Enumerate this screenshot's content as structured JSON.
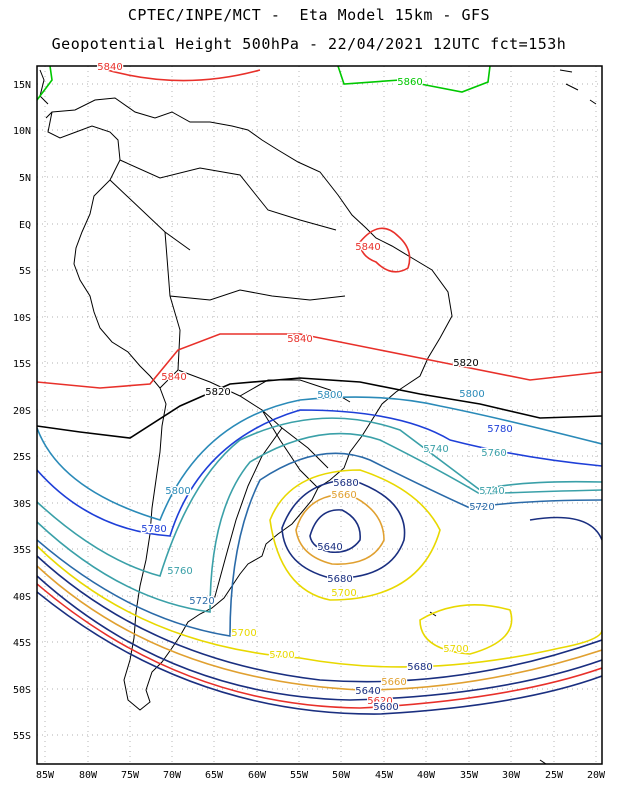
{
  "title": {
    "line1": "CPTEC/INPE/MCT -  Eta Model 15km - GFS",
    "line2": "Geopotential Height 500hPa - 22/04/2021 12UTC fct=153h"
  },
  "lat_labels": [
    "15N",
    "10N",
    "5N",
    "EQ",
    "5S",
    "10S",
    "15S",
    "20S",
    "25S",
    "30S",
    "35S",
    "40S",
    "45S",
    "50S",
    "55S"
  ],
  "lon_labels": [
    "85W",
    "80W",
    "75W",
    "70W",
    "65W",
    "60W",
    "55W",
    "50W",
    "45W",
    "40W",
    "35W",
    "30W",
    "25W",
    "20W"
  ],
  "contour_labels": [
    {
      "text": "5860",
      "color": "#00c800"
    },
    {
      "text": "5840",
      "color": "#e8302a"
    },
    {
      "text": "5840",
      "color": "#e8302a"
    },
    {
      "text": "5840",
      "color": "#e8302a"
    },
    {
      "text": "5840",
      "color": "#e8302a"
    },
    {
      "text": "5820",
      "color": "#000000"
    },
    {
      "text": "5820",
      "color": "#000000"
    },
    {
      "text": "5800",
      "color": "#2a8ab8"
    },
    {
      "text": "5800",
      "color": "#2a8ab8"
    },
    {
      "text": "5800",
      "color": "#2a8ab8"
    },
    {
      "text": "5780",
      "color": "#1e3fd8"
    },
    {
      "text": "5780",
      "color": "#1e3fd8"
    },
    {
      "text": "5760",
      "color": "#3aa0a8"
    },
    {
      "text": "5760",
      "color": "#3aa0a8"
    },
    {
      "text": "5740",
      "color": "#3aa0a8"
    },
    {
      "text": "5740",
      "color": "#3aa0a8"
    },
    {
      "text": "5720",
      "color": "#2a6aa8"
    },
    {
      "text": "5720",
      "color": "#2a6aa8"
    },
    {
      "text": "5700",
      "color": "#e8d800"
    },
    {
      "text": "5700",
      "color": "#e8d800"
    },
    {
      "text": "5700",
      "color": "#e8d800"
    },
    {
      "text": "5700",
      "color": "#e8d800"
    },
    {
      "text": "5680",
      "color": "#1a2f80"
    },
    {
      "text": "5680",
      "color": "#1a2f80"
    },
    {
      "text": "5680",
      "color": "#1a2f80"
    },
    {
      "text": "5660",
      "color": "#e0a030"
    },
    {
      "text": "5660",
      "color": "#e0a030"
    },
    {
      "text": "5640",
      "color": "#1a2f80"
    },
    {
      "text": "5640",
      "color": "#1a2f80"
    },
    {
      "text": "5620",
      "color": "#e8302a"
    },
    {
      "text": "5600",
      "color": "#1a2f80"
    }
  ],
  "colors": {
    "frame": "#000000",
    "grid": "#999999",
    "coast": "#000000",
    "c5860": "#00c800",
    "c5840": "#e8302a",
    "c5820": "#000000",
    "c5800": "#2a8ab8",
    "c5780": "#1e3fd8",
    "c5760": "#3aa0a8",
    "c5720": "#2a6aa8",
    "c5700": "#e8d800",
    "c5680": "#1a2f80",
    "c5660": "#e0a030"
  }
}
